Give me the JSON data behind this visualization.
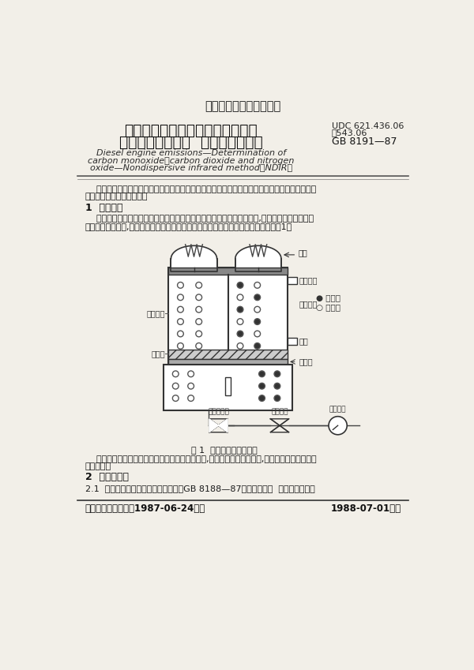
{
  "page_bg": "#f2efe8",
  "title_national": "中华人民共和国国家标准",
  "title_main_line1": "柴油机排气中一氧化碳、二氧化碳",
  "title_main_line2": "和氮氧化物的测定  不分光红外线法",
  "title_en_line1": "Diesel engine emissions—Determination of",
  "title_en_line2": "carbon monoxide，carbon dioxide and nitrogen",
  "title_en_line3": "oxide—Nondispersive infrared method（NDIR）",
  "udc_line1": "UDC 621.436.06",
  "udc_line2": "：543.06",
  "gb_number": "GB 8191—87",
  "body_text1a": "    本标准规定了采用不分光型红外线分析法连续分析柴油机在稳定工况下排气中一氧化碳、二氧化",
  "body_text1b": "碳和氮氧化物浓度的方法。",
  "section1_title": "1  方法原理",
  "body_text2a": "    利用异原子组成的气体分子具有选择性地吸收特定波长的红外线的特性,其吸收量的大小与被测",
  "body_text2b": "组分的浓度成比例,从而对一氧化碳、二氧化碳和氮氧化物进行定量。分析仪结构见图1。",
  "fig_caption": "图 1  红外线分析仪结构图",
  "fig_text_a": "    排气中的二氧化氮经过转换器还原成一氧化氮后,所测得的一氧化氮含量,即为柴油机排气中氮氧",
  "fig_text_b": "化物的量。",
  "section2_title": "2  术语及定义",
  "body_text3": "2.1  本标准应用的专门符号和定义按照GB 8188—87《柴油机排放  术语》的规定。",
  "footer_left": "国家机械工业委员会1987-06-24批准",
  "footer_right": "1988-07-01实施",
  "label_guangyuan": "光源",
  "label_qiti_rukou": "气样入口",
  "label_cebiao_qishi": "待测气室",
  "label_chukou": "出口",
  "label_lvguang": "滤光片",
  "label_canguang_qishi": "参比气室",
  "label_qieguang": "切光片",
  "label_sample": "● 待测气",
  "label_background": "○ 背景气",
  "label_qiangfang": "前置放大器",
  "label_zhukongqi": "主放大器",
  "label_erciyi": "二次仪表"
}
